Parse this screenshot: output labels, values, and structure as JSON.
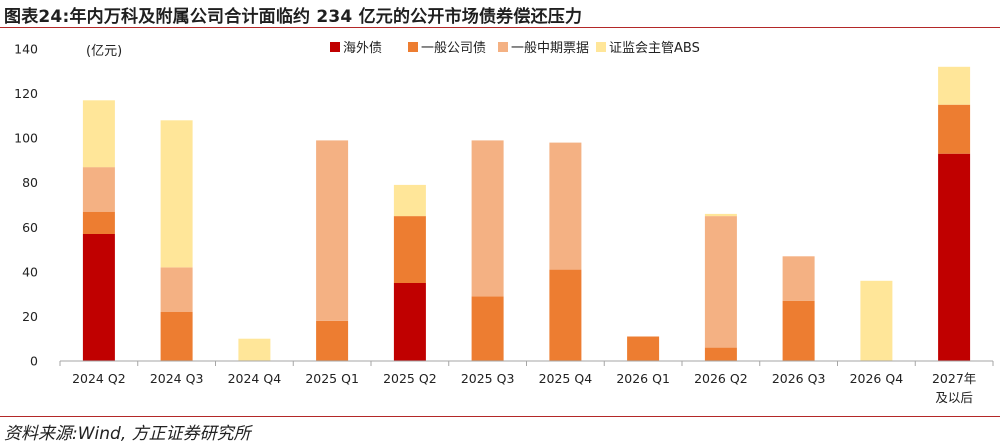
{
  "title": "图表24:年内万科及附属公司合计面临约 234 亿元的公开市场债券偿还压力",
  "source": "资料来源:Wind, 方正证券研究所",
  "colors": {
    "overseas_bond": "#c00000",
    "corporate_bond": "#ed7d31",
    "medium_term_note": "#f4b183",
    "abs": "#ffe699",
    "rule": "#b32828",
    "axis": "#a6a6a6"
  },
  "chart_data": {
    "type": "bar",
    "stacked": true,
    "unit_label": "(亿元)",
    "categories": [
      "2024 Q2",
      "2024 Q3",
      "2024 Q4",
      "2025 Q1",
      "2025 Q2",
      "2025 Q3",
      "2025 Q4",
      "2026 Q1",
      "2026 Q2",
      "2026 Q3",
      "2026 Q4",
      "2027年\n及以后"
    ],
    "series": [
      {
        "name": "海外债",
        "color": "#c00000",
        "values": [
          57,
          0,
          0,
          0,
          35,
          0,
          0,
          0,
          0,
          0,
          0,
          93
        ]
      },
      {
        "name": "一般公司债",
        "color": "#ed7d31",
        "values": [
          10,
          22,
          0,
          18,
          30,
          29,
          41,
          11,
          6,
          27,
          0,
          22
        ]
      },
      {
        "name": "一般中期票据",
        "color": "#f4b183",
        "values": [
          20,
          20,
          0,
          81,
          0,
          70,
          57,
          0,
          59,
          20,
          0,
          0
        ]
      },
      {
        "name": "证监会主管ABS",
        "color": "#ffe699",
        "values": [
          30,
          66,
          10,
          0,
          14,
          0,
          0,
          0,
          1,
          0,
          36,
          17
        ]
      }
    ],
    "ylim": [
      0,
      140
    ],
    "yticks": [
      0,
      20,
      40,
      60,
      80,
      100,
      120,
      140
    ],
    "grid": false,
    "legend_position": "top-center"
  }
}
